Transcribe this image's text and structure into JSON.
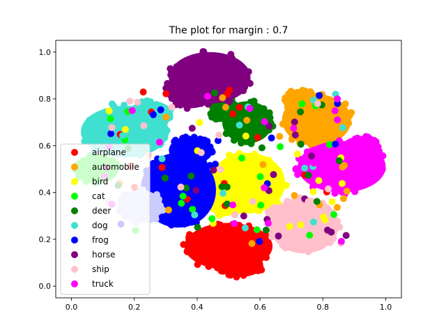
{
  "chart_data": {
    "type": "scatter",
    "title": "The plot for margin : 0.7",
    "xlabel": "",
    "ylabel": "",
    "xlim": [
      -0.05,
      1.05
    ],
    "ylim": [
      -0.05,
      1.05
    ],
    "xticks": [
      "0.0",
      "0.2",
      "0.4",
      "0.6",
      "0.8",
      "1.0"
    ],
    "yticks": [
      "0.0",
      "0.2",
      "0.4",
      "0.6",
      "0.8",
      "1.0"
    ],
    "grid": false,
    "legend_position": "lower-left",
    "series": [
      {
        "name": "airplane",
        "color": "#ff0000",
        "clusters": [
          {
            "cx": 0.5,
            "cy": 0.17,
            "rx": 0.14,
            "ry": 0.1
          },
          {
            "cx": 0.54,
            "cy": 0.09,
            "rx": 0.07,
            "ry": 0.05
          }
        ]
      },
      {
        "name": "automobile",
        "color": "#ffa500",
        "clusters": [
          {
            "cx": 0.78,
            "cy": 0.71,
            "rx": 0.11,
            "ry": 0.11
          },
          {
            "cx": 0.73,
            "cy": 0.8,
            "rx": 0.05,
            "ry": 0.04
          }
        ]
      },
      {
        "name": "bird",
        "color": "#ffff00",
        "clusters": [
          {
            "cx": 0.56,
            "cy": 0.44,
            "rx": 0.12,
            "ry": 0.13
          },
          {
            "cx": 0.49,
            "cy": 0.36,
            "rx": 0.06,
            "ry": 0.06
          }
        ]
      },
      {
        "name": "cat",
        "color": "#00ff00",
        "clusters": [
          {
            "cx": 0.08,
            "cy": 0.5,
            "rx": 0.07,
            "ry": 0.06
          }
        ]
      },
      {
        "name": "deer",
        "color": "#008000",
        "clusters": [
          {
            "cx": 0.56,
            "cy": 0.7,
            "rx": 0.08,
            "ry": 0.09
          },
          {
            "cx": 0.49,
            "cy": 0.75,
            "rx": 0.05,
            "ry": 0.05
          }
        ]
      },
      {
        "name": "dog",
        "color": "#40e0d0",
        "clusters": [
          {
            "cx": 0.17,
            "cy": 0.66,
            "rx": 0.14,
            "ry": 0.11
          },
          {
            "cx": 0.25,
            "cy": 0.74,
            "rx": 0.07,
            "ry": 0.05
          }
        ]
      },
      {
        "name": "frog",
        "color": "#0000ff",
        "clusters": [
          {
            "cx": 0.34,
            "cy": 0.41,
            "rx": 0.12,
            "ry": 0.16
          },
          {
            "cx": 0.38,
            "cy": 0.58,
            "rx": 0.07,
            "ry": 0.06
          }
        ]
      },
      {
        "name": "horse",
        "color": "#800080",
        "clusters": [
          {
            "cx": 0.44,
            "cy": 0.89,
            "rx": 0.13,
            "ry": 0.11
          },
          {
            "cx": 0.38,
            "cy": 0.84,
            "rx": 0.08,
            "ry": 0.08
          }
        ]
      },
      {
        "name": "ship",
        "color": "#ffc0cb",
        "clusters": [
          {
            "cx": 0.74,
            "cy": 0.26,
            "rx": 0.11,
            "ry": 0.12
          },
          {
            "cx": 0.68,
            "cy": 0.3,
            "rx": 0.06,
            "ry": 0.05
          }
        ]
      },
      {
        "name": "truck",
        "color": "#ff00ff",
        "clusters": [
          {
            "cx": 0.86,
            "cy": 0.51,
            "rx": 0.14,
            "ry": 0.11
          },
          {
            "cx": 0.92,
            "cy": 0.59,
            "rx": 0.06,
            "ry": 0.05
          }
        ]
      }
    ],
    "extra_clusters": [
      {
        "series": "cat",
        "color": "#ccccff",
        "cx": 0.22,
        "cy": 0.34,
        "rx": 0.07,
        "ry": 0.07
      }
    ]
  }
}
